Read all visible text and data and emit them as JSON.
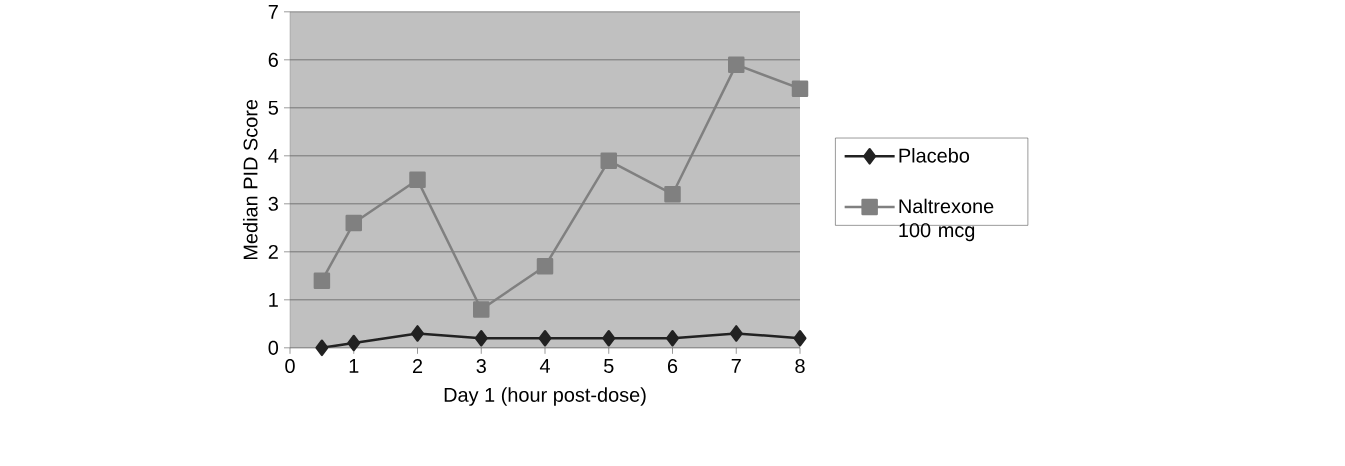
{
  "chart_data": {
    "type": "line",
    "xlabel": "Day 1 (hour post-dose)",
    "ylabel": "Median PID Score",
    "x": [
      0.5,
      1,
      2,
      3,
      4,
      5,
      6,
      7,
      8
    ],
    "series": [
      {
        "name": "Placebo",
        "color": "#222222",
        "marker": "diamond",
        "values": [
          0,
          0.1,
          0.3,
          0.2,
          0.2,
          0.2,
          0.2,
          0.3,
          0.2
        ]
      },
      {
        "name": "Naltrexone 100 mcg",
        "color": "#808080",
        "marker": "square",
        "values": [
          1.4,
          2.6,
          3.5,
          0.8,
          1.7,
          3.9,
          3.2,
          5.9,
          5.4
        ]
      }
    ],
    "xlim": [
      0,
      8
    ],
    "xticks": [
      0,
      1,
      2,
      3,
      4,
      5,
      6,
      7,
      8
    ],
    "ylim": [
      0,
      7
    ],
    "yticks": [
      0,
      1,
      2,
      3,
      4,
      5,
      6,
      7
    ],
    "grid": "y",
    "legend": "right",
    "line_style": "solid"
  }
}
